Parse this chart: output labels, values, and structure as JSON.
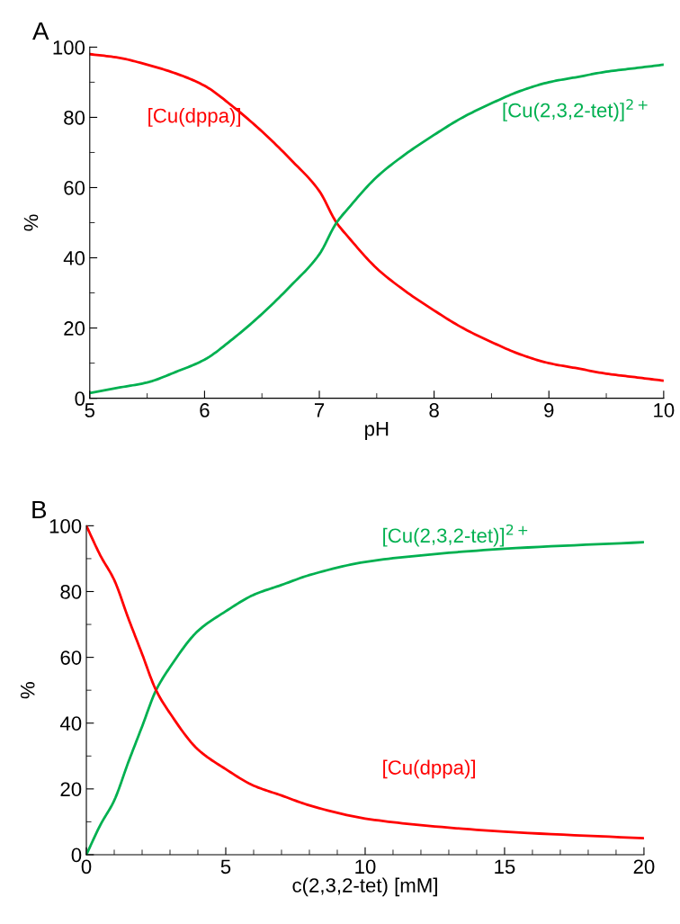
{
  "chart_data": [
    {
      "type": "line",
      "title": "A",
      "xlabel": "pH",
      "ylabel": "%",
      "xlim": [
        5,
        10
      ],
      "ylim": [
        0,
        100
      ],
      "xticks": [
        5,
        6,
        7,
        8,
        9,
        10
      ],
      "yticks": [
        0,
        20,
        40,
        60,
        80,
        100
      ],
      "grid": false,
      "legend": false,
      "series": [
        {
          "name": "[Cu(dppa)]",
          "color": "#ff0000",
          "x": [
            5,
            5.25,
            5.5,
            5.75,
            6,
            6.25,
            6.5,
            6.75,
            7,
            7.15,
            7.25,
            7.5,
            7.75,
            8,
            8.25,
            8.5,
            8.75,
            9,
            9.25,
            9.5,
            9.75,
            10
          ],
          "values": [
            98,
            97,
            95,
            92.5,
            89,
            83,
            76,
            68,
            59,
            50,
            46,
            37,
            30.5,
            25,
            20,
            16,
            12.5,
            10,
            8.5,
            7,
            6,
            5
          ]
        },
        {
          "name": "[Cu(2,3,2-tet)]$^{2+}$",
          "color": "#00b050",
          "x": [
            5,
            5.25,
            5.5,
            5.75,
            6,
            6.25,
            6.5,
            6.75,
            7,
            7.15,
            7.25,
            7.5,
            7.75,
            8,
            8.25,
            8.5,
            8.75,
            9,
            9.25,
            9.5,
            9.75,
            10
          ],
          "values": [
            1.5,
            3,
            4.5,
            7.5,
            11,
            17,
            24,
            32,
            41,
            50,
            54,
            63,
            69.5,
            75,
            80,
            84,
            87.5,
            90,
            91.5,
            93,
            94,
            95
          ]
        }
      ]
    },
    {
      "type": "line",
      "title": "B",
      "xlabel": "c(2,3,2-tet) [mM]",
      "ylabel": "%",
      "xlim": [
        0,
        20
      ],
      "ylim": [
        0,
        100
      ],
      "xticks": [
        0,
        5,
        10,
        15,
        20
      ],
      "yticks": [
        0,
        20,
        40,
        60,
        80,
        100
      ],
      "grid": false,
      "legend": false,
      "series": [
        {
          "name": "[Cu(2,3,2-tet)]$^{2+}$",
          "color": "#00b050",
          "x": [
            0,
            0.5,
            1,
            1.5,
            2,
            2.5,
            3,
            4,
            5,
            6,
            7,
            8,
            10,
            12,
            15,
            20
          ],
          "values": [
            0,
            9,
            16.5,
            28,
            39,
            50,
            57,
            68,
            74,
            79,
            82,
            85,
            89,
            91,
            93,
            95
          ]
        },
        {
          "name": "[Cu(dppa)]",
          "color": "#ff0000",
          "x": [
            0,
            0.5,
            1,
            1.5,
            2,
            2.5,
            3,
            4,
            5,
            6,
            7,
            8,
            10,
            12,
            15,
            20
          ],
          "values": [
            100,
            91,
            83.5,
            72,
            61,
            50,
            43,
            32,
            26,
            21,
            18,
            15,
            11,
            9,
            7,
            5
          ]
        }
      ]
    }
  ]
}
